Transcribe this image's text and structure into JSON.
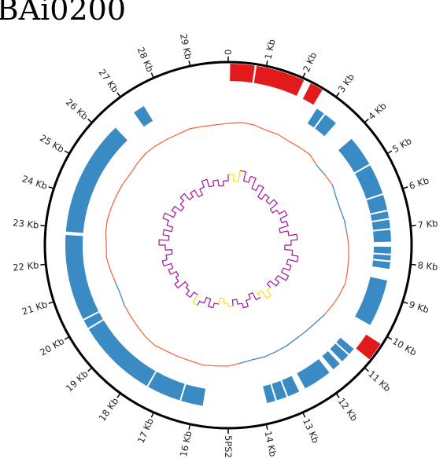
{
  "title": "BAi0200",
  "genome": {
    "length_kb": 30,
    "tick_labels": [
      "0",
      "1 Kb",
      "2 Kb",
      "3 Kb",
      "4 Kb",
      "5 Kb",
      "6 Kb",
      "7 Kb",
      "8 Kb",
      "9 Kb",
      "10 Kb",
      "11 Kb",
      "12 Kb",
      "13 Kb",
      "14 Kb",
      "5PS2",
      "16 Kb",
      "17 Kb",
      "18 Kb",
      "19 Kb",
      "20 Kb",
      "21 Kb",
      "22 Kb",
      "23 Kb",
      "24 Kb",
      "25 Kb",
      "26 Kb",
      "27 Kb",
      "28 Kb",
      "29 Kb"
    ]
  },
  "colors": {
    "forward_feature": "#e31a1c",
    "reverse_feature": "#3a8ac4",
    "gc_content_high": "#f26b43",
    "gc_content_low": "#3a8ac4",
    "gc_skew": "#a3129a",
    "gc_skew_highlight": "#f2e218",
    "backbone": "#000000"
  },
  "features": [
    {
      "strand": "forward",
      "start_kb": 0.05,
      "end_kb": 0.7
    },
    {
      "strand": "forward",
      "start_kb": 0.75,
      "end_kb": 2.05
    },
    {
      "strand": "forward",
      "start_kb": 2.25,
      "end_kb": 2.6
    },
    {
      "strand": "reverse",
      "start_kb": 2.75,
      "end_kb": 3.0
    },
    {
      "strand": "reverse",
      "start_kb": 3.05,
      "end_kb": 3.45
    },
    {
      "strand": "reverse",
      "start_kb": 4.1,
      "end_kb": 5.0
    },
    {
      "strand": "reverse",
      "start_kb": 5.05,
      "end_kb": 5.95
    },
    {
      "strand": "reverse",
      "start_kb": 6.0,
      "end_kb": 6.45
    },
    {
      "strand": "reverse",
      "start_kb": 6.5,
      "end_kb": 6.7
    },
    {
      "strand": "reverse",
      "start_kb": 6.75,
      "end_kb": 7.0
    },
    {
      "strand": "reverse",
      "start_kb": 7.05,
      "end_kb": 7.4
    },
    {
      "strand": "reverse",
      "start_kb": 7.55,
      "end_kb": 7.75
    },
    {
      "strand": "reverse",
      "start_kb": 7.8,
      "end_kb": 7.95
    },
    {
      "strand": "reverse",
      "start_kb": 8.0,
      "end_kb": 8.2
    },
    {
      "strand": "reverse",
      "start_kb": 8.55,
      "end_kb": 9.95
    },
    {
      "strand": "forward",
      "start_kb": 10.25,
      "end_kb": 10.75
    },
    {
      "strand": "reverse",
      "start_kb": 10.8,
      "end_kb": 11.0
    },
    {
      "strand": "reverse",
      "start_kb": 11.05,
      "end_kb": 11.3
    },
    {
      "strand": "reverse",
      "start_kb": 11.4,
      "end_kb": 11.65
    },
    {
      "strand": "reverse",
      "start_kb": 11.8,
      "end_kb": 12.65
    },
    {
      "strand": "reverse",
      "start_kb": 12.85,
      "end_kb": 13.2
    },
    {
      "strand": "reverse",
      "start_kb": 13.25,
      "end_kb": 13.55
    },
    {
      "strand": "reverse",
      "start_kb": 13.6,
      "end_kb": 13.85
    },
    {
      "strand": "reverse",
      "start_kb": 15.75,
      "end_kb": 16.4
    },
    {
      "strand": "reverse",
      "start_kb": 16.45,
      "end_kb": 17.45
    },
    {
      "strand": "reverse",
      "start_kb": 17.5,
      "end_kb": 19.9
    },
    {
      "strand": "reverse",
      "start_kb": 19.95,
      "end_kb": 20.2
    },
    {
      "strand": "reverse",
      "start_kb": 20.25,
      "end_kb": 22.8
    },
    {
      "strand": "reverse",
      "start_kb": 22.9,
      "end_kb": 26.35
    },
    {
      "strand": "reverse",
      "start_kb": 27.05,
      "end_kb": 27.4
    }
  ],
  "gc_content": {
    "values": [
      0.2,
      0.4,
      0.35,
      0.1,
      0.15,
      0.0,
      0.1,
      0.2,
      -0.15,
      -0.1,
      0.0,
      -0.3,
      -0.35,
      -0.2,
      -0.15,
      0.0,
      0.1,
      0.2,
      0.35,
      0.2,
      0.0,
      -0.2,
      -0.45,
      -0.55,
      -0.6,
      -0.5,
      -0.45,
      -0.35,
      -0.4,
      -0.2,
      0.1,
      0.15,
      0.3,
      0.2,
      0.25,
      0.3,
      0.5,
      0.4,
      0.2,
      0.05,
      -0.05,
      -0.25,
      -0.2,
      0.0,
      0.25,
      0.2,
      0.35,
      0.4,
      0.3,
      0.25,
      0.2,
      0.1,
      0.25,
      0.4,
      0.35,
      0.25,
      0.2,
      0.3,
      0.15,
      0.1
    ]
  },
  "gc_skew": {
    "values": [
      0.7,
      0.5,
      0.85,
      0.55,
      0.75,
      0.4,
      0.6,
      0.25,
      0.45,
      0.3,
      0.5,
      0.2,
      0.35,
      0.55,
      0.3,
      0.45,
      0.15,
      0.4,
      0.65,
      0.45,
      0.25,
      0.5,
      0.7,
      0.4,
      0.55,
      0.35,
      0.6,
      0.3,
      0.45,
      0.2,
      0.35,
      0.55,
      0.25,
      0.4,
      0.15,
      0.3,
      0.5,
      0.35,
      0.2,
      0.4,
      0.3,
      0.15,
      0.35,
      0.5,
      0.25,
      0.45,
      0.6,
      0.3,
      0.5,
      0.35,
      0.25,
      0.55,
      0.4,
      0.3,
      0.5,
      0.35,
      0.6,
      0.45,
      0.25,
      0.45,
      0.65,
      0.35,
      0.55,
      0.3,
      0.5,
      0.7,
      0.4,
      0.55,
      0.3,
      0.45,
      0.6,
      0.35,
      0.5,
      0.25,
      0.45,
      0.65,
      0.4,
      0.55,
      0.35,
      0.5
    ],
    "highlight_ranges_kb": [
      [
        0.0,
        0.7
      ],
      [
        11.4,
        12.2
      ],
      [
        14.8,
        15.6
      ],
      [
        17.2,
        17.7
      ]
    ]
  }
}
